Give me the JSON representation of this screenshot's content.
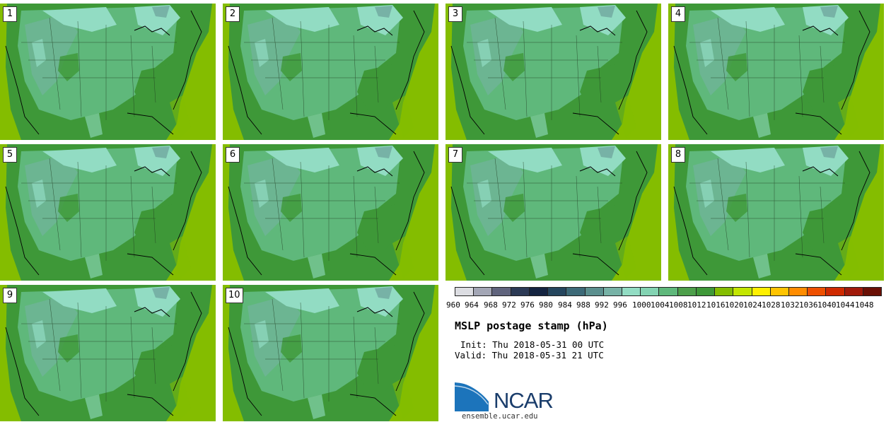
{
  "stamps": [
    {
      "label": "1"
    },
    {
      "label": "2"
    },
    {
      "label": "3"
    },
    {
      "label": "4"
    },
    {
      "label": "5"
    },
    {
      "label": "6"
    },
    {
      "label": "7"
    },
    {
      "label": "8"
    },
    {
      "label": "9"
    },
    {
      "label": "10"
    }
  ],
  "colorbar": {
    "colors": [
      "#dcdde2",
      "#a3a6b5",
      "#60647d",
      "#2c3a55",
      "#142440",
      "#25465e",
      "#3d6a78",
      "#5b8f8e",
      "#77b2a6",
      "#92dcc3",
      "#83d3b2",
      "#5fb87b",
      "#4d9f4a",
      "#3e9838",
      "#84bd00",
      "#c3e600",
      "#fff000",
      "#ffc400",
      "#ff8c00",
      "#ee5000",
      "#cf2a00",
      "#a11a0a",
      "#6a1005"
    ],
    "ticks": [
      "960",
      "964",
      "968",
      "972",
      "976",
      "980",
      "984",
      "988",
      "992",
      "996",
      "1000",
      "1004",
      "1008",
      "1012",
      "1016",
      "1020",
      "1024",
      "1028",
      "1032",
      "1036",
      "1040",
      "1044",
      "1048"
    ]
  },
  "title": "MSLP postage stamp (hPa)",
  "init": "Init: Thu 2018-05-31 00 UTC",
  "valid": "Valid: Thu 2018-05-31 21 UTC",
  "logo": {
    "text": "NCAR",
    "url": "ensemble.ucar.edu"
  }
}
